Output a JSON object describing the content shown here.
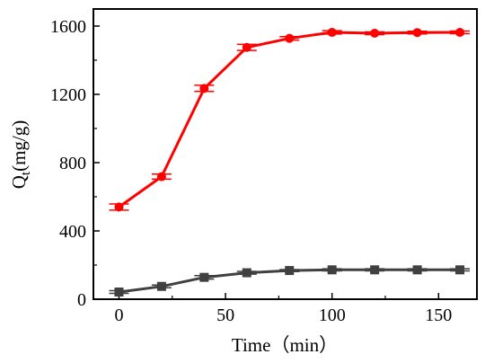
{
  "chart_data": {
    "type": "line",
    "xlabel": "Time（min）",
    "ylabel_main": "Q",
    "ylabel_sub": "t",
    "ylabel_unit": "(mg/g)",
    "xlim": [
      -12,
      168
    ],
    "ylim": [
      0,
      1700
    ],
    "xticks": [
      0,
      50,
      100,
      150
    ],
    "yticks": [
      0,
      400,
      800,
      1200,
      1600
    ],
    "grid": false,
    "legend": "none",
    "series": [
      {
        "color": "#ff0000",
        "marker": "circle",
        "x": [
          0,
          20,
          40,
          60,
          80,
          100,
          120,
          140,
          160
        ],
        "y": [
          540,
          718,
          1235,
          1475,
          1528,
          1563,
          1558,
          1562,
          1563
        ],
        "err": [
          18,
          15,
          18,
          18,
          10,
          10,
          8,
          8,
          8
        ]
      },
      {
        "color": "#404040",
        "marker": "square",
        "x": [
          0,
          20,
          40,
          60,
          80,
          100,
          120,
          140,
          160
        ],
        "y": [
          42,
          75,
          128,
          155,
          168,
          172,
          172,
          172,
          172
        ],
        "err": [
          8,
          8,
          10,
          8,
          6,
          6,
          6,
          6,
          6
        ]
      }
    ]
  }
}
